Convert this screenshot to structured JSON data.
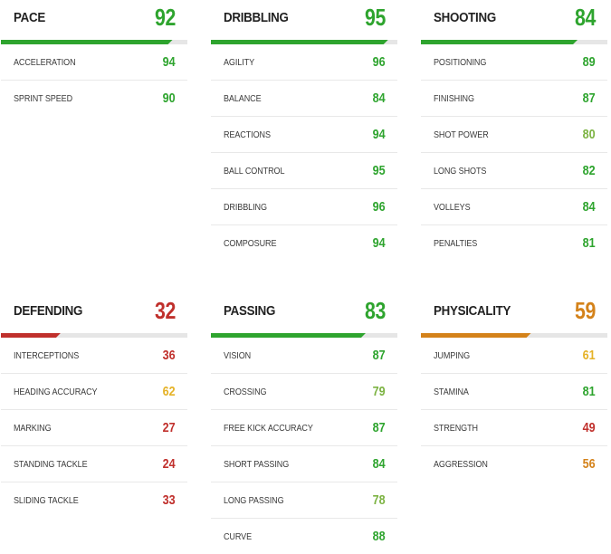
{
  "colors": {
    "green": "#2ea42e",
    "light_green": "#7cb342",
    "yellow": "#e5b227",
    "orange": "#d4821a",
    "red": "#c0302c",
    "track": "#e6e6e6"
  },
  "categories": [
    {
      "name": "PACE",
      "value": 92,
      "color": "green",
      "stats": [
        {
          "name": "ACCELERATION",
          "value": 94,
          "color": "green"
        },
        {
          "name": "SPRINT SPEED",
          "value": 90,
          "color": "green"
        }
      ]
    },
    {
      "name": "DRIBBLING",
      "value": 95,
      "color": "green",
      "stats": [
        {
          "name": "AGILITY",
          "value": 96,
          "color": "green"
        },
        {
          "name": "BALANCE",
          "value": 84,
          "color": "green"
        },
        {
          "name": "REACTIONS",
          "value": 94,
          "color": "green"
        },
        {
          "name": "BALL CONTROL",
          "value": 95,
          "color": "green"
        },
        {
          "name": "DRIBBLING",
          "value": 96,
          "color": "green"
        },
        {
          "name": "COMPOSURE",
          "value": 94,
          "color": "green"
        }
      ]
    },
    {
      "name": "SHOOTING",
      "value": 84,
      "color": "green",
      "stats": [
        {
          "name": "POSITIONING",
          "value": 89,
          "color": "green"
        },
        {
          "name": "FINISHING",
          "value": 87,
          "color": "green"
        },
        {
          "name": "SHOT POWER",
          "value": 80,
          "color": "light_green"
        },
        {
          "name": "LONG SHOTS",
          "value": 82,
          "color": "green"
        },
        {
          "name": "VOLLEYS",
          "value": 84,
          "color": "green"
        },
        {
          "name": "PENALTIES",
          "value": 81,
          "color": "green"
        }
      ]
    },
    {
      "name": "DEFENDING",
      "value": 32,
      "color": "red",
      "stats": [
        {
          "name": "INTERCEPTIONS",
          "value": 36,
          "color": "red"
        },
        {
          "name": "HEADING ACCURACY",
          "value": 62,
          "color": "yellow"
        },
        {
          "name": "MARKING",
          "value": 27,
          "color": "red"
        },
        {
          "name": "STANDING TACKLE",
          "value": 24,
          "color": "red"
        },
        {
          "name": "SLIDING TACKLE",
          "value": 33,
          "color": "red"
        }
      ]
    },
    {
      "name": "PASSING",
      "value": 83,
      "color": "green",
      "stats": [
        {
          "name": "VISION",
          "value": 87,
          "color": "green"
        },
        {
          "name": "CROSSING",
          "value": 79,
          "color": "light_green"
        },
        {
          "name": "FREE KICK ACCURACY",
          "value": 87,
          "color": "green"
        },
        {
          "name": "SHORT PASSING",
          "value": 84,
          "color": "green"
        },
        {
          "name": "LONG PASSING",
          "value": 78,
          "color": "light_green"
        },
        {
          "name": "CURVE",
          "value": 88,
          "color": "green"
        }
      ]
    },
    {
      "name": "PHYSICALITY",
      "value": 59,
      "color": "orange",
      "stats": [
        {
          "name": "JUMPING",
          "value": 61,
          "color": "yellow"
        },
        {
          "name": "STAMINA",
          "value": 81,
          "color": "green"
        },
        {
          "name": "STRENGTH",
          "value": 49,
          "color": "red"
        },
        {
          "name": "AGGRESSION",
          "value": 56,
          "color": "orange"
        }
      ]
    }
  ]
}
